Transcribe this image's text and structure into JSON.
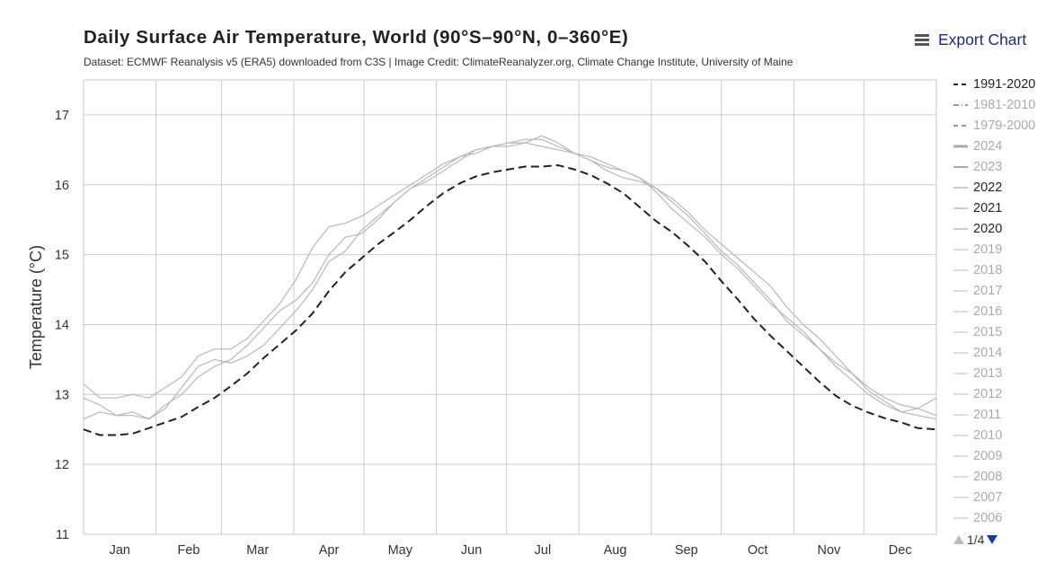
{
  "header": {
    "title": "Daily Surface Air Temperature, World (90°S–90°N, 0–360°E)",
    "subtitle": "Dataset: ECMWF Reanalysis v5 (ERA5) downloaded from C3S | Image Credit: ClimateReanalyzer.org, Climate Change Institute, University of Maine",
    "export_label": "Export Chart",
    "export_icon": "hamburger-menu-icon"
  },
  "colors": {
    "baseline": "#222222",
    "recent_years": "#b8b8b8",
    "legend_inactive": "#aaaaaa",
    "legend_active": "#222222",
    "grid": "#cccccc",
    "pager_arrow": "#1b3a9a"
  },
  "legend": {
    "items": [
      {
        "label": "1991-2020",
        "style": "dashed",
        "active": true,
        "color": "#222222"
      },
      {
        "label": "1981-2010",
        "style": "dashdot",
        "active": false,
        "color": "#999999"
      },
      {
        "label": "1979-2000",
        "style": "dashed",
        "active": false,
        "color": "#999999"
      },
      {
        "label": "2024",
        "style": "solid-thick",
        "active": false,
        "color": "#aaaaaa"
      },
      {
        "label": "2023",
        "style": "solid",
        "active": false,
        "color": "#aaaaaa"
      },
      {
        "label": "2022",
        "style": "solid-light",
        "active": true,
        "color": "#cccccc"
      },
      {
        "label": "2021",
        "style": "solid-light",
        "active": true,
        "color": "#cccccc"
      },
      {
        "label": "2020",
        "style": "solid-light",
        "active": true,
        "color": "#cccccc"
      },
      {
        "label": "2019",
        "style": "solid-light",
        "active": false,
        "color": "#dddddd"
      },
      {
        "label": "2018",
        "style": "solid-light",
        "active": false,
        "color": "#dddddd"
      },
      {
        "label": "2017",
        "style": "solid-light",
        "active": false,
        "color": "#dddddd"
      },
      {
        "label": "2016",
        "style": "solid-light",
        "active": false,
        "color": "#dddddd"
      },
      {
        "label": "2015",
        "style": "solid-light",
        "active": false,
        "color": "#dddddd"
      },
      {
        "label": "2014",
        "style": "solid-light",
        "active": false,
        "color": "#dddddd"
      },
      {
        "label": "2013",
        "style": "solid-light",
        "active": false,
        "color": "#dddddd"
      },
      {
        "label": "2012",
        "style": "solid-light",
        "active": false,
        "color": "#dddddd"
      },
      {
        "label": "2011",
        "style": "solid-light",
        "active": false,
        "color": "#dddddd"
      },
      {
        "label": "2010",
        "style": "solid-light",
        "active": false,
        "color": "#dddddd"
      },
      {
        "label": "2009",
        "style": "solid-light",
        "active": false,
        "color": "#dddddd"
      },
      {
        "label": "2008",
        "style": "solid-light",
        "active": false,
        "color": "#dddddd"
      },
      {
        "label": "2007",
        "style": "solid-light",
        "active": false,
        "color": "#dddddd"
      },
      {
        "label": "2006",
        "style": "solid-light",
        "active": false,
        "color": "#dddddd"
      }
    ],
    "pager": "1/4"
  },
  "chart_data": {
    "type": "line",
    "title": "Daily Surface Air Temperature, World (90°S–90°N, 0–360°E)",
    "xlabel": "",
    "ylabel": "Temperature (°C)",
    "x_day_range": [
      1,
      366
    ],
    "ylim": [
      11,
      17.5
    ],
    "yticks": [
      11,
      12,
      13,
      14,
      15,
      16,
      17
    ],
    "months": [
      "Jan",
      "Feb",
      "Mar",
      "Apr",
      "May",
      "Jun",
      "Jul",
      "Aug",
      "Sep",
      "Oct",
      "Nov",
      "Dec"
    ],
    "month_start_days": [
      1,
      32,
      60,
      91,
      121,
      152,
      182,
      213,
      244,
      274,
      305,
      335
    ],
    "grid": true,
    "legend_position": "right",
    "series": [
      {
        "name": "1991-2020",
        "style": "dashed",
        "x": [
          1,
          8,
          15,
          22,
          29,
          36,
          43,
          50,
          57,
          64,
          71,
          78,
          85,
          92,
          99,
          106,
          113,
          120,
          127,
          134,
          141,
          148,
          155,
          162,
          169,
          176,
          183,
          190,
          197,
          204,
          211,
          218,
          225,
          232,
          239,
          246,
          253,
          260,
          267,
          274,
          281,
          288,
          295,
          302,
          309,
          316,
          323,
          330,
          337,
          344,
          351,
          358,
          366
        ],
        "y": [
          12.5,
          12.42,
          12.42,
          12.44,
          12.52,
          12.6,
          12.68,
          12.82,
          12.95,
          13.12,
          13.3,
          13.52,
          13.72,
          13.92,
          14.16,
          14.48,
          14.75,
          14.95,
          15.15,
          15.32,
          15.5,
          15.7,
          15.88,
          16.02,
          16.12,
          16.18,
          16.22,
          16.26,
          16.26,
          16.28,
          16.22,
          16.14,
          16.02,
          15.88,
          15.68,
          15.48,
          15.32,
          15.12,
          14.9,
          14.62,
          14.36,
          14.08,
          13.84,
          13.62,
          13.4,
          13.18,
          12.98,
          12.84,
          12.74,
          12.66,
          12.6,
          12.52,
          12.5
        ]
      },
      {
        "name": "2022",
        "style": "solid-light",
        "x": [
          1,
          8,
          15,
          22,
          29,
          36,
          43,
          50,
          57,
          64,
          71,
          78,
          85,
          92,
          99,
          106,
          113,
          120,
          127,
          134,
          141,
          148,
          155,
          162,
          169,
          176,
          183,
          190,
          197,
          204,
          211,
          218,
          225,
          232,
          239,
          246,
          253,
          260,
          267,
          274,
          281,
          288,
          295,
          302,
          309,
          316,
          323,
          330,
          337,
          344,
          351,
          358,
          366
        ],
        "y": [
          12.95,
          12.85,
          12.7,
          12.75,
          12.65,
          12.8,
          13.1,
          13.4,
          13.5,
          13.45,
          13.55,
          13.7,
          13.95,
          14.2,
          14.5,
          14.9,
          15.05,
          15.35,
          15.55,
          15.75,
          15.95,
          16.05,
          16.2,
          16.35,
          16.5,
          16.55,
          16.6,
          16.6,
          16.55,
          16.5,
          16.45,
          16.4,
          16.3,
          16.2,
          16.1,
          15.9,
          15.65,
          15.45,
          15.25,
          15.0,
          14.8,
          14.55,
          14.3,
          14.1,
          13.9,
          13.65,
          13.4,
          13.2,
          13.0,
          12.85,
          12.75,
          12.7,
          12.65
        ]
      },
      {
        "name": "2021",
        "style": "solid-light",
        "x": [
          1,
          8,
          15,
          22,
          29,
          36,
          43,
          50,
          57,
          64,
          71,
          78,
          85,
          92,
          99,
          106,
          113,
          120,
          127,
          134,
          141,
          148,
          155,
          162,
          169,
          176,
          183,
          190,
          197,
          204,
          211,
          218,
          225,
          232,
          239,
          246,
          253,
          260,
          267,
          274,
          281,
          288,
          295,
          302,
          309,
          316,
          323,
          330,
          337,
          344,
          351,
          358,
          366
        ],
        "y": [
          12.65,
          12.75,
          12.7,
          12.7,
          12.65,
          12.85,
          13.0,
          13.25,
          13.4,
          13.5,
          13.7,
          13.95,
          14.2,
          14.35,
          14.6,
          15.0,
          15.25,
          15.3,
          15.5,
          15.75,
          15.95,
          16.1,
          16.25,
          16.4,
          16.45,
          16.55,
          16.6,
          16.65,
          16.65,
          16.55,
          16.45,
          16.35,
          16.2,
          16.1,
          16.05,
          15.95,
          15.75,
          15.55,
          15.3,
          15.05,
          14.85,
          14.6,
          14.35,
          14.05,
          13.85,
          13.65,
          13.45,
          13.3,
          13.05,
          12.9,
          12.75,
          12.8,
          12.7
        ]
      },
      {
        "name": "2020",
        "style": "solid-light",
        "x": [
          1,
          8,
          15,
          22,
          29,
          36,
          43,
          50,
          57,
          64,
          71,
          78,
          85,
          92,
          99,
          106,
          113,
          120,
          127,
          134,
          141,
          148,
          155,
          162,
          169,
          176,
          183,
          190,
          197,
          204,
          211,
          218,
          225,
          232,
          239,
          246,
          253,
          260,
          267,
          274,
          281,
          288,
          295,
          302,
          309,
          316,
          323,
          330,
          337,
          344,
          351,
          358,
          366
        ],
        "y": [
          13.15,
          12.95,
          12.95,
          13.0,
          12.95,
          13.1,
          13.25,
          13.55,
          13.65,
          13.65,
          13.8,
          14.05,
          14.3,
          14.65,
          15.1,
          15.4,
          15.45,
          15.55,
          15.7,
          15.85,
          16.0,
          16.15,
          16.3,
          16.4,
          16.5,
          16.55,
          16.55,
          16.6,
          16.7,
          16.6,
          16.45,
          16.35,
          16.25,
          16.2,
          16.1,
          15.95,
          15.8,
          15.6,
          15.35,
          15.15,
          14.95,
          14.75,
          14.55,
          14.25,
          14.0,
          13.8,
          13.55,
          13.3,
          13.1,
          12.95,
          12.85,
          12.8,
          12.95
        ]
      }
    ]
  }
}
